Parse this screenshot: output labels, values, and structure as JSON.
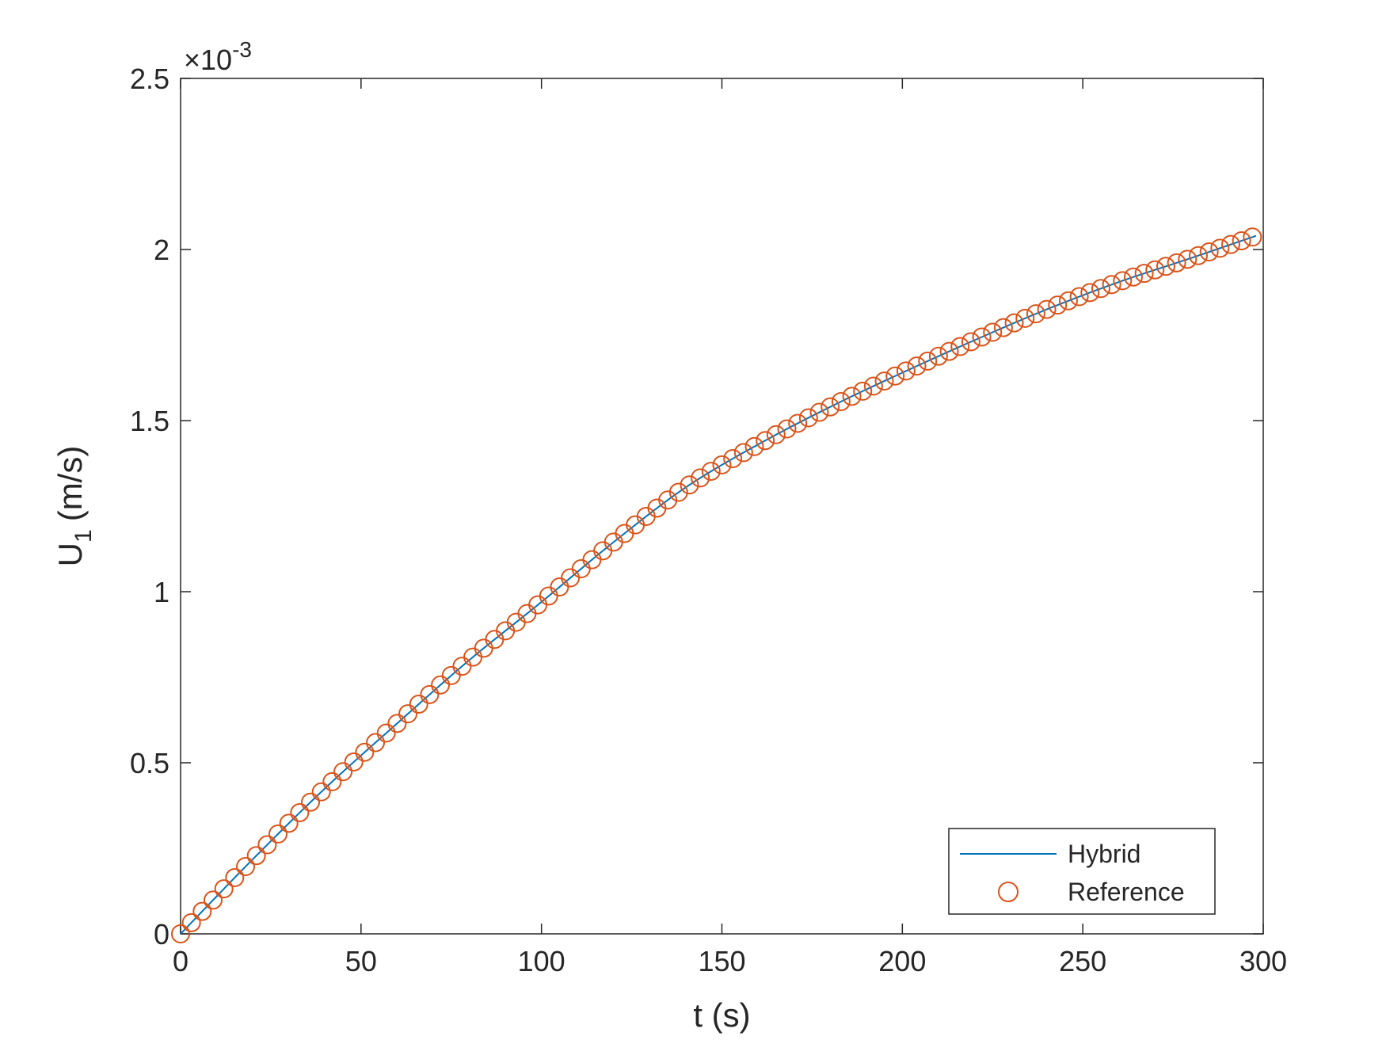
{
  "chart_data": {
    "type": "line",
    "xlabel": "t (s)",
    "ylabel": {
      "main": "U",
      "sub": "1",
      "unit": "(m/s)"
    },
    "y_exponent": {
      "times": "×10",
      "power": "-3"
    },
    "xlim": [
      0,
      300
    ],
    "ylim": [
      0,
      2.5
    ],
    "x_ticks": [
      0,
      50,
      100,
      150,
      200,
      250,
      300
    ],
    "x_tick_labels": [
      "0",
      "50",
      "100",
      "150",
      "200",
      "250",
      "300"
    ],
    "y_ticks": [
      0,
      0.5,
      1,
      1.5,
      2,
      2.5
    ],
    "y_tick_labels": [
      "0",
      "0.5",
      "1",
      "1.5",
      "2",
      "2.5"
    ],
    "grid": false,
    "legend_position": "bottom-right",
    "series": [
      {
        "name": "Hybrid",
        "style": "line",
        "color": "#0072BD",
        "x": [
          0,
          20,
          40,
          60,
          80,
          100,
          120,
          140,
          160,
          180,
          200,
          220,
          240,
          260,
          280,
          298
        ],
        "y": [
          0,
          0.218,
          0.425,
          0.615,
          0.8,
          0.97,
          1.145,
          1.305,
          1.43,
          1.54,
          1.64,
          1.735,
          1.825,
          1.905,
          1.975,
          2.04
        ]
      },
      {
        "name": "Reference",
        "style": "marker-circle",
        "color": "#D95319",
        "x": [
          0,
          20,
          40,
          60,
          80,
          100,
          120,
          140,
          160,
          180,
          200,
          220,
          240,
          260,
          280,
          298
        ],
        "y": [
          0,
          0.218,
          0.425,
          0.615,
          0.8,
          0.97,
          1.145,
          1.305,
          1.43,
          1.54,
          1.64,
          1.735,
          1.825,
          1.905,
          1.975,
          2.04
        ],
        "marker_spacing": 3
      }
    ]
  }
}
